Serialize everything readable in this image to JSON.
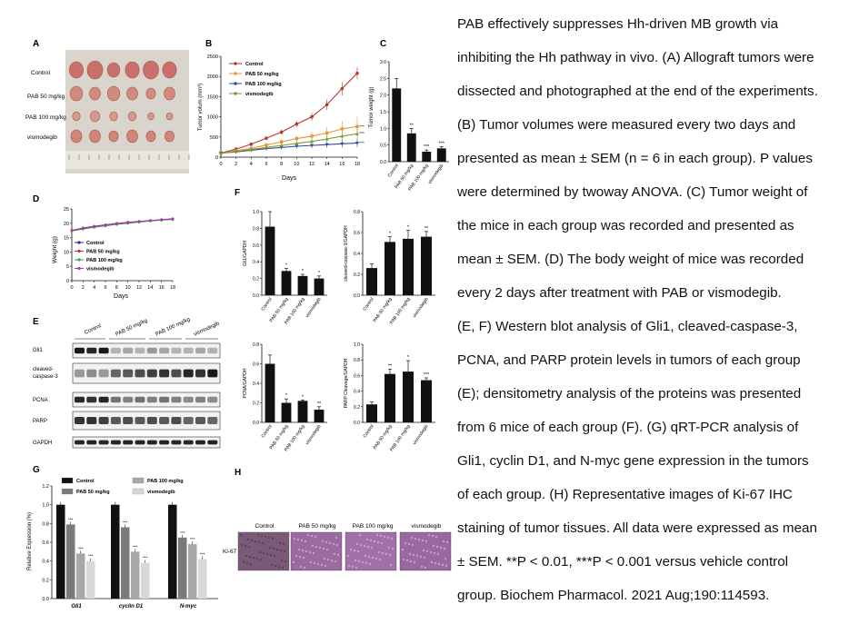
{
  "panels": {
    "A": {
      "letter": "A",
      "rows": [
        "Control",
        "PAB 50 mg/kg",
        "PAB 100 mg/kg",
        "vismodegib"
      ]
    },
    "B": {
      "letter": "B",
      "ylabel": "Tumor volum (mm³)",
      "xlabel": "Days",
      "yticks": [
        "0",
        "500",
        "1000",
        "1500",
        "2000",
        "2500"
      ],
      "xticks": [
        "0",
        "2",
        "4",
        "6",
        "8",
        "10",
        "12",
        "14",
        "16",
        "18"
      ],
      "legend": [
        "Control",
        "PAB 50 mg/kg",
        "PAB 100 mg/kg",
        "vismodegib"
      ],
      "sig": "***"
    },
    "C": {
      "letter": "C",
      "ylabel": "Tumor weight (g)",
      "yticks": [
        "0.0",
        "0.5",
        "1.0",
        "1.5",
        "2.0",
        "2.5",
        "3.0"
      ],
      "categories": [
        "Control",
        "PAB 50 mg/kg",
        "PAB 100 mg/kg",
        "vismodegib"
      ],
      "sig": [
        "",
        "**",
        "***",
        "***"
      ]
    },
    "D": {
      "letter": "D",
      "ylabel": "Weight (g)",
      "xlabel": "Days",
      "yticks": [
        "0",
        "5",
        "10",
        "15",
        "20",
        "25"
      ],
      "xticks": [
        "0",
        "2",
        "4",
        "6",
        "8",
        "10",
        "12",
        "14",
        "16",
        "18"
      ],
      "legend": [
        "Control",
        "PAB 50 mg/kg",
        "PAB 100 mg/kg",
        "vismodegib"
      ]
    },
    "E": {
      "letter": "E",
      "groups": [
        "Control",
        "PAB 50 mg/kg",
        "PAB 100 mg/kg",
        "vismodegib"
      ],
      "proteins": [
        "Gli1",
        "cleaved-caspase-3",
        "PCNA",
        "PARP",
        "GAPDH"
      ]
    },
    "F": {
      "letter": "F",
      "categories": [
        "Control",
        "PAB 50 mg/kg",
        "PAB 100 mg/kg",
        "vismodegib"
      ]
    },
    "G": {
      "letter": "G",
      "ylabel": "Relative Expression (%)",
      "yticks": [
        "0.0",
        "0.2",
        "0.4",
        "0.6",
        "0.8",
        "1.0",
        "1.2"
      ],
      "legend": [
        "Control",
        "PAB 50 mg/kg",
        "PAB 100 mg/kg",
        "vismodegib"
      ],
      "genes": [
        "Gli1",
        "cyclin D1",
        "N-myc"
      ]
    },
    "H": {
      "letter": "H",
      "columns": [
        "Control",
        "PAB 50 mg/kg",
        "PAB 100 mg/kg",
        "vismodegib"
      ],
      "row": "Ki-67"
    }
  },
  "colors": {
    "control": "#b03a2e",
    "pab50": "#e8963a",
    "pab100": "#2f4aa0",
    "vis": "#7a9a2a",
    "d_control": "#2a2a9a",
    "d_pab50": "#d0302a",
    "d_pab100": "#3aa040",
    "d_vis": "#b030c0",
    "g_control": "#111111",
    "g_pab50": "#7a7a7a",
    "g_pab100": "#a8a8a8",
    "g_vis": "#d8d8d8"
  },
  "caption_lines": [
    "PAB effectively suppresses Hh-driven MB growth via",
    "inhibiting the Hh pathway in vivo. (A) Allograft tumors were",
    "dissected and photographed at the end of the experiments.",
    "(B) Tumor volumes were measured every two days and",
    "presented as mean ± SEM (n = 6 in each group). P values",
    "were determined by twoway ANOVA. (C) Tumor weight of",
    "the mice in each group was recorded and presented as",
    "mean ± SEM. (D) The body weight of mice was recorded",
    "every 2 days after treatment with PAB or vismodegib.",
    "(E, F) Western blot analysis of Gli1, cleaved-caspase-3,",
    "PCNA, and PARP protein levels in tumors of each group",
    "(E); densitometry analysis of the proteins was presented",
    "from 6 mice of each group (F). (G) qRT-PCR analysis of",
    "Gli1, cyclin D1, and N-myc gene expression in the tumors",
    "of each group. (H) Representative images of Ki-67 IHC",
    "staining of tumor tissues. All data were expressed as mean",
    "± SEM. **P < 0.01, ***P < 0.001 versus vehicle control",
    "group. Biochem Pharmacol. 2021 Aug;190:114593."
  ],
  "chart_data": [
    {
      "panel": "B",
      "type": "line",
      "title": "",
      "xlabel": "Days",
      "ylabel": "Tumor volum (mm³)",
      "x": [
        0,
        2,
        4,
        6,
        8,
        10,
        12,
        14,
        16,
        18
      ],
      "ylim": [
        0,
        2500
      ],
      "series": [
        {
          "name": "Control",
          "values": [
            100,
            200,
            320,
            470,
            620,
            820,
            1000,
            1300,
            1700,
            2080
          ],
          "err": [
            20,
            30,
            40,
            50,
            60,
            80,
            100,
            130,
            170,
            150
          ]
        },
        {
          "name": "PAB 50 mg/kg",
          "values": [
            100,
            160,
            220,
            300,
            380,
            460,
            520,
            600,
            700,
            760
          ],
          "err": [
            20,
            30,
            40,
            50,
            60,
            80,
            100,
            150,
            200,
            240
          ]
        },
        {
          "name": "PAB 100 mg/kg",
          "values": [
            100,
            130,
            170,
            210,
            240,
            270,
            290,
            310,
            330,
            350
          ],
          "err": [
            15,
            20,
            30,
            40,
            50,
            60,
            70,
            80,
            90,
            100
          ]
        },
        {
          "name": "vismodegib",
          "values": [
            100,
            140,
            190,
            240,
            290,
            340,
            390,
            450,
            520,
            580
          ],
          "err": [
            15,
            25,
            35,
            45,
            55,
            70,
            80,
            100,
            120,
            130
          ]
        }
      ]
    },
    {
      "panel": "C",
      "type": "bar",
      "ylabel": "Tumor weight (g)",
      "ylim": [
        0,
        3
      ],
      "categories": [
        "Control",
        "PAB 50 mg/kg",
        "PAB 100 mg/kg",
        "vismodegib"
      ],
      "values": [
        2.2,
        0.85,
        0.3,
        0.4
      ],
      "err": [
        0.3,
        0.15,
        0.05,
        0.05
      ]
    },
    {
      "panel": "D",
      "type": "line",
      "xlabel": "Days",
      "ylabel": "Weight (g)",
      "ylim": [
        0,
        25
      ],
      "x": [
        0,
        2,
        4,
        6,
        8,
        10,
        12,
        14,
        16,
        18
      ],
      "series": [
        {
          "name": "Control",
          "values": [
            17.5,
            18.2,
            18.8,
            19.3,
            19.8,
            20.2,
            20.6,
            20.9,
            21.2,
            21.5
          ]
        },
        {
          "name": "PAB 50 mg/kg",
          "values": [
            17.3,
            18.0,
            18.6,
            19.1,
            19.6,
            20.0,
            20.4,
            20.8,
            21.1,
            21.4
          ]
        },
        {
          "name": "PAB 100 mg/kg",
          "values": [
            17.4,
            18.1,
            18.7,
            19.2,
            19.7,
            20.1,
            20.5,
            20.8,
            21.1,
            21.3
          ]
        },
        {
          "name": "vismodegib",
          "values": [
            17.6,
            18.4,
            19.0,
            19.5,
            20.0,
            20.4,
            20.7,
            21.0,
            21.3,
            21.6
          ]
        }
      ]
    },
    {
      "panel": "F1",
      "type": "bar",
      "ylabel": "Gli1/GAPDH",
      "ylim": [
        0,
        1.0
      ],
      "yticks": [
        "0.0",
        "0.2",
        "0.4",
        "0.6",
        "0.8",
        "1.0"
      ],
      "categories": [
        "Control",
        "PAB 50 mg/kg",
        "PAB 100 mg/kg",
        "vismodegib"
      ],
      "values": [
        0.82,
        0.29,
        0.23,
        0.2
      ],
      "err": [
        0.18,
        0.03,
        0.02,
        0.03
      ],
      "sig": [
        "",
        "*",
        "*",
        "*"
      ]
    },
    {
      "panel": "F2",
      "type": "bar",
      "ylabel": "cleaved-caspase-3/GAPDH",
      "ylim": [
        0,
        0.8
      ],
      "yticks": [
        "0.0",
        "0.2",
        "0.4",
        "0.6",
        "0.8"
      ],
      "categories": [
        "Control",
        "PAB 50 mg/kg",
        "PAB 100 mg/kg",
        "vismodegib"
      ],
      "values": [
        0.26,
        0.51,
        0.54,
        0.56
      ],
      "err": [
        0.04,
        0.05,
        0.08,
        0.05
      ],
      "sig": [
        "",
        "*",
        "*",
        "**"
      ]
    },
    {
      "panel": "F3",
      "type": "bar",
      "ylabel": "PCNA/GAPDH",
      "ylim": [
        0,
        0.8
      ],
      "yticks": [
        "0.0",
        "0.2",
        "0.4",
        "0.6",
        "0.8"
      ],
      "categories": [
        "Control",
        "PAB 50 mg/kg",
        "PAB 100 mg/kg",
        "vismodegib"
      ],
      "values": [
        0.6,
        0.2,
        0.22,
        0.13
      ],
      "err": [
        0.09,
        0.04,
        0.01,
        0.03
      ],
      "sig": [
        "",
        "*",
        "*",
        "**"
      ]
    },
    {
      "panel": "F4",
      "type": "bar",
      "ylabel": "PARP Cleavage/GAPDH",
      "ylim": [
        0,
        1.0
      ],
      "yticks": [
        "0.0",
        "0.2",
        "0.4",
        "0.6",
        "0.8",
        "1.0"
      ],
      "categories": [
        "Control",
        "PAB 50 mg/kg",
        "PAB 100 mg/kg",
        "vismodegib"
      ],
      "values": [
        0.23,
        0.62,
        0.65,
        0.54
      ],
      "err": [
        0.03,
        0.06,
        0.14,
        0.03
      ],
      "sig": [
        "",
        "**",
        "*",
        "***"
      ]
    },
    {
      "panel": "G",
      "type": "bar",
      "ylabel": "Relative Expression (%)",
      "ylim": [
        0,
        1.2
      ],
      "categories": [
        "Gli1",
        "cyclin D1",
        "N-myc"
      ],
      "series": [
        {
          "name": "Control",
          "values": [
            1.0,
            1.0,
            1.0
          ]
        },
        {
          "name": "PAB 50 mg/kg",
          "values": [
            0.79,
            0.76,
            0.65
          ]
        },
        {
          "name": "PAB 100 mg/kg",
          "values": [
            0.48,
            0.5,
            0.58
          ]
        },
        {
          "name": "vismodegib",
          "values": [
            0.4,
            0.38,
            0.42
          ]
        }
      ],
      "sig": [
        [
          "",
          "***",
          "***",
          "***"
        ],
        [
          "",
          "***",
          "***",
          "***"
        ],
        [
          "",
          "***",
          "***",
          "***"
        ]
      ]
    }
  ]
}
